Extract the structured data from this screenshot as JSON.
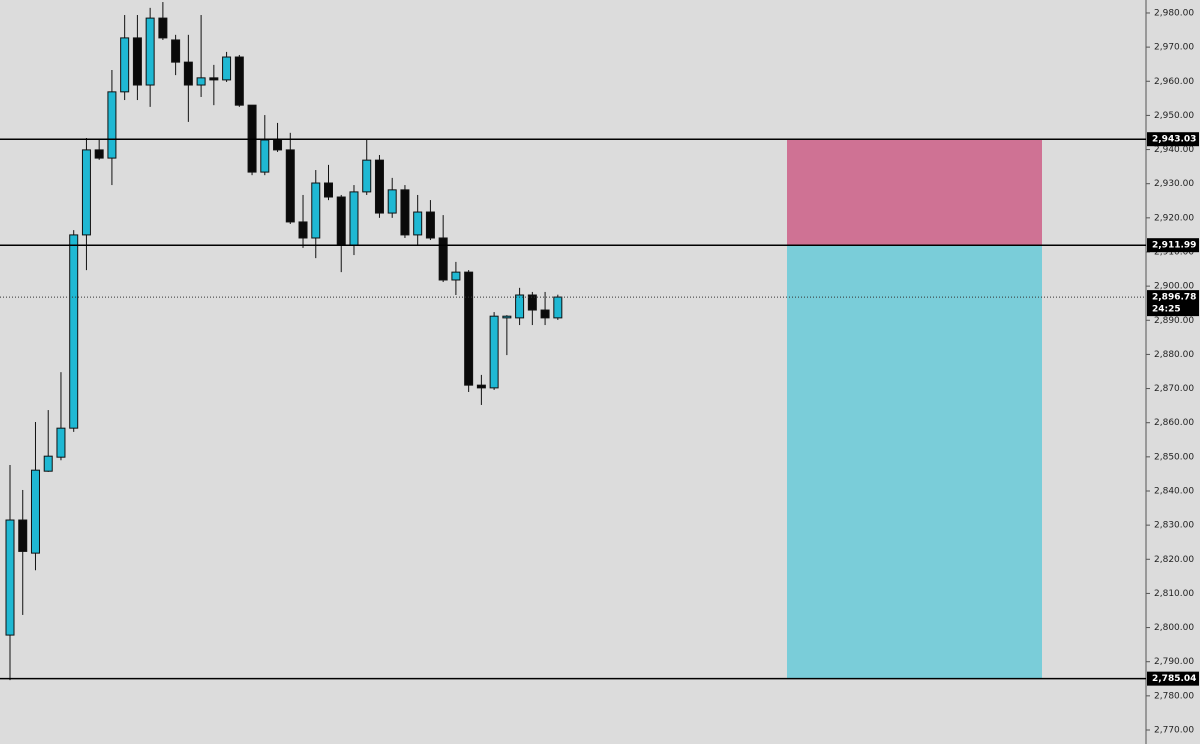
{
  "chart_data": {
    "type": "candlestick",
    "up_color": "#1fb8d3",
    "down_color": "#0a0a0a",
    "categories": [
      null,
      null,
      null,
      null,
      null,
      null,
      null,
      null,
      null,
      null,
      null,
      null,
      null,
      null,
      null,
      null,
      null,
      null,
      null,
      null,
      null,
      null,
      null,
      null,
      null,
      null,
      null,
      null,
      null,
      null,
      null,
      null,
      null,
      null,
      null,
      null,
      null,
      null,
      null,
      null,
      null,
      null,
      null,
      null
    ],
    "open": [
      2797.8,
      2831.5,
      2821.8,
      2845.8,
      2849.9,
      2858.4,
      2915.0,
      2939.9,
      2937.5,
      2956.9,
      2972.7,
      2958.9,
      2978.5,
      2972.1,
      2965.6,
      2958.9,
      2961.0,
      2960.4,
      2967.1,
      2953.0,
      2933.4,
      2942.8,
      2939.9,
      2918.8,
      2914.1,
      2930.2,
      2926.1,
      2912.0,
      2927.6,
      2936.9,
      2921.4,
      2928.2,
      2915.0,
      2921.7,
      2914.1,
      2901.8,
      2904.1,
      2871.0,
      2870.2,
      2890.7,
      2890.7,
      2897.4,
      2893.0,
      2890.7
    ],
    "high": [
      2847.6,
      2840.3,
      2860.2,
      2863.7,
      2874.8,
      2916.4,
      2943.4,
      2942.8,
      2963.3,
      2979.4,
      2979.4,
      2981.5,
      2983.2,
      2973.6,
      2973.6,
      2979.4,
      2964.8,
      2968.6,
      2967.7,
      2953.0,
      2950.1,
      2947.8,
      2944.9,
      2926.7,
      2934.0,
      2935.5,
      2926.7,
      2929.6,
      2942.8,
      2938.4,
      2931.7,
      2929.6,
      2926.7,
      2925.2,
      2920.8,
      2907.1,
      2904.7,
      2874.0,
      2892.4,
      2891.5,
      2899.5,
      2898.3,
      2898.3,
      2897.5
    ],
    "low": [
      2784.6,
      2803.7,
      2816.8,
      2845.6,
      2849.0,
      2857.3,
      2904.7,
      2937.0,
      2929.6,
      2954.5,
      2954.5,
      2952.5,
      2972.1,
      2961.8,
      2948.1,
      2955.4,
      2953.0,
      2959.8,
      2952.5,
      2932.5,
      2932.5,
      2939.3,
      2918.2,
      2911.2,
      2908.2,
      2925.2,
      2904.1,
      2909.1,
      2926.7,
      2920.0,
      2920.0,
      2914.1,
      2912.0,
      2913.5,
      2901.2,
      2897.4,
      2869.0,
      2865.2,
      2869.6,
      2879.8,
      2888.6,
      2888.6,
      2888.6,
      2890.1
    ],
    "close": [
      2831.5,
      2822.3,
      2846.1,
      2850.2,
      2858.4,
      2915.0,
      2939.9,
      2937.5,
      2956.9,
      2972.7,
      2958.9,
      2978.5,
      2972.7,
      2965.6,
      2958.9,
      2961.0,
      2960.4,
      2967.1,
      2953.0,
      2933.4,
      2942.8,
      2939.9,
      2918.8,
      2914.1,
      2930.2,
      2926.1,
      2912.0,
      2927.6,
      2936.9,
      2921.4,
      2928.2,
      2915.0,
      2921.7,
      2914.1,
      2901.8,
      2904.1,
      2871.0,
      2870.2,
      2891.2,
      2891.2,
      2897.4,
      2893.0,
      2890.7,
      2896.8
    ],
    "ylim": [
      2765.9,
      2983.8
    ],
    "yticks": [
      {
        "value": 2980,
        "label": "2,980.00"
      },
      {
        "value": 2970,
        "label": "2,970.00"
      },
      {
        "value": 2960,
        "label": "2,960.00"
      },
      {
        "value": 2950,
        "label": "2,950.00"
      },
      {
        "value": 2940,
        "label": "2,940.00"
      },
      {
        "value": 2930,
        "label": "2,930.00"
      },
      {
        "value": 2920,
        "label": "2,920.00"
      },
      {
        "value": 2910,
        "label": "2,910.00"
      },
      {
        "value": 2900,
        "label": "2,900.00"
      },
      {
        "value": 2890,
        "label": "2,890.00"
      },
      {
        "value": 2880,
        "label": "2,880.00"
      },
      {
        "value": 2870,
        "label": "2,870.00"
      },
      {
        "value": 2860,
        "label": "2,860.00"
      },
      {
        "value": 2850,
        "label": "2,850.00"
      },
      {
        "value": 2840,
        "label": "2,840.00"
      },
      {
        "value": 2830,
        "label": "2,830.00"
      },
      {
        "value": 2820,
        "label": "2,820.00"
      },
      {
        "value": 2810,
        "label": "2,810.00"
      },
      {
        "value": 2800,
        "label": "2,800.00"
      },
      {
        "value": 2790,
        "label": "2,790.00"
      },
      {
        "value": 2780,
        "label": "2,780.00"
      },
      {
        "value": 2770,
        "label": "2,770.00"
      }
    ],
    "zones": [
      {
        "top": 2943.03,
        "bottom": 2911.99,
        "color": "#cf7294"
      },
      {
        "top": 2911.99,
        "bottom": 2785.04,
        "color": "#7acdd9"
      }
    ],
    "levels": [
      {
        "value": 2943.03,
        "label": "2,943.03"
      },
      {
        "value": 2911.99,
        "label": "2,911.99"
      },
      {
        "value": 2785.04,
        "label": "2,785.04"
      }
    ],
    "current_price": {
      "value": 2896.78,
      "label": "2,896.78",
      "countdown": "24:25"
    }
  }
}
